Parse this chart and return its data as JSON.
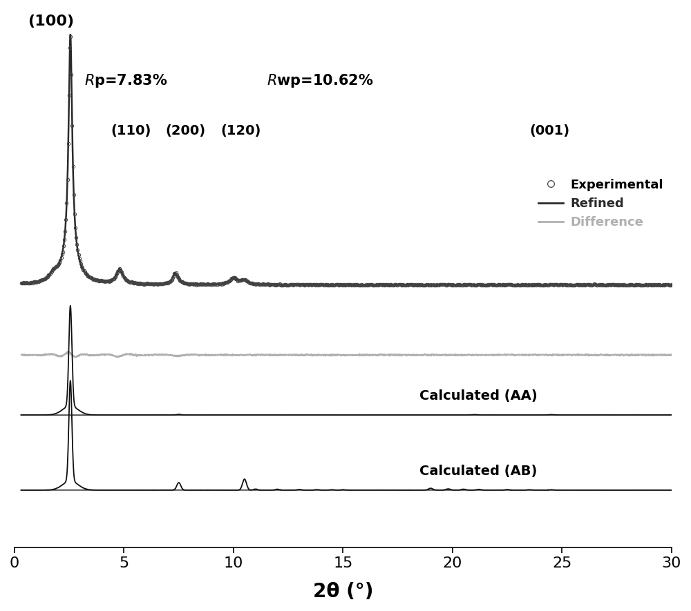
{
  "xlim": [
    0,
    30
  ],
  "xlabel": "2θ (°)",
  "xlabel_fontsize": 20,
  "tick_fontsize": 16,
  "background_color": "#ffffff",
  "refined_color": "#2a2a2a",
  "difference_color": "#b0b0b0",
  "experimental_color": "#555555",
  "calc_color": "#111111",
  "rp_text": "$\\it{R}$p=7.83%",
  "rwp_text": "$\\it{R}$wp=10.62%",
  "miller_100": "(100)",
  "miller_110": "(110)",
  "miller_200": "(200)",
  "miller_120": "(120)",
  "miller_001": "(001)",
  "calc_AA_label": "Calculated (AA)",
  "calc_AB_label": "Calculated (AB)",
  "legend_exp": "Experimental",
  "legend_refined": "Refined",
  "legend_diff": "Difference"
}
